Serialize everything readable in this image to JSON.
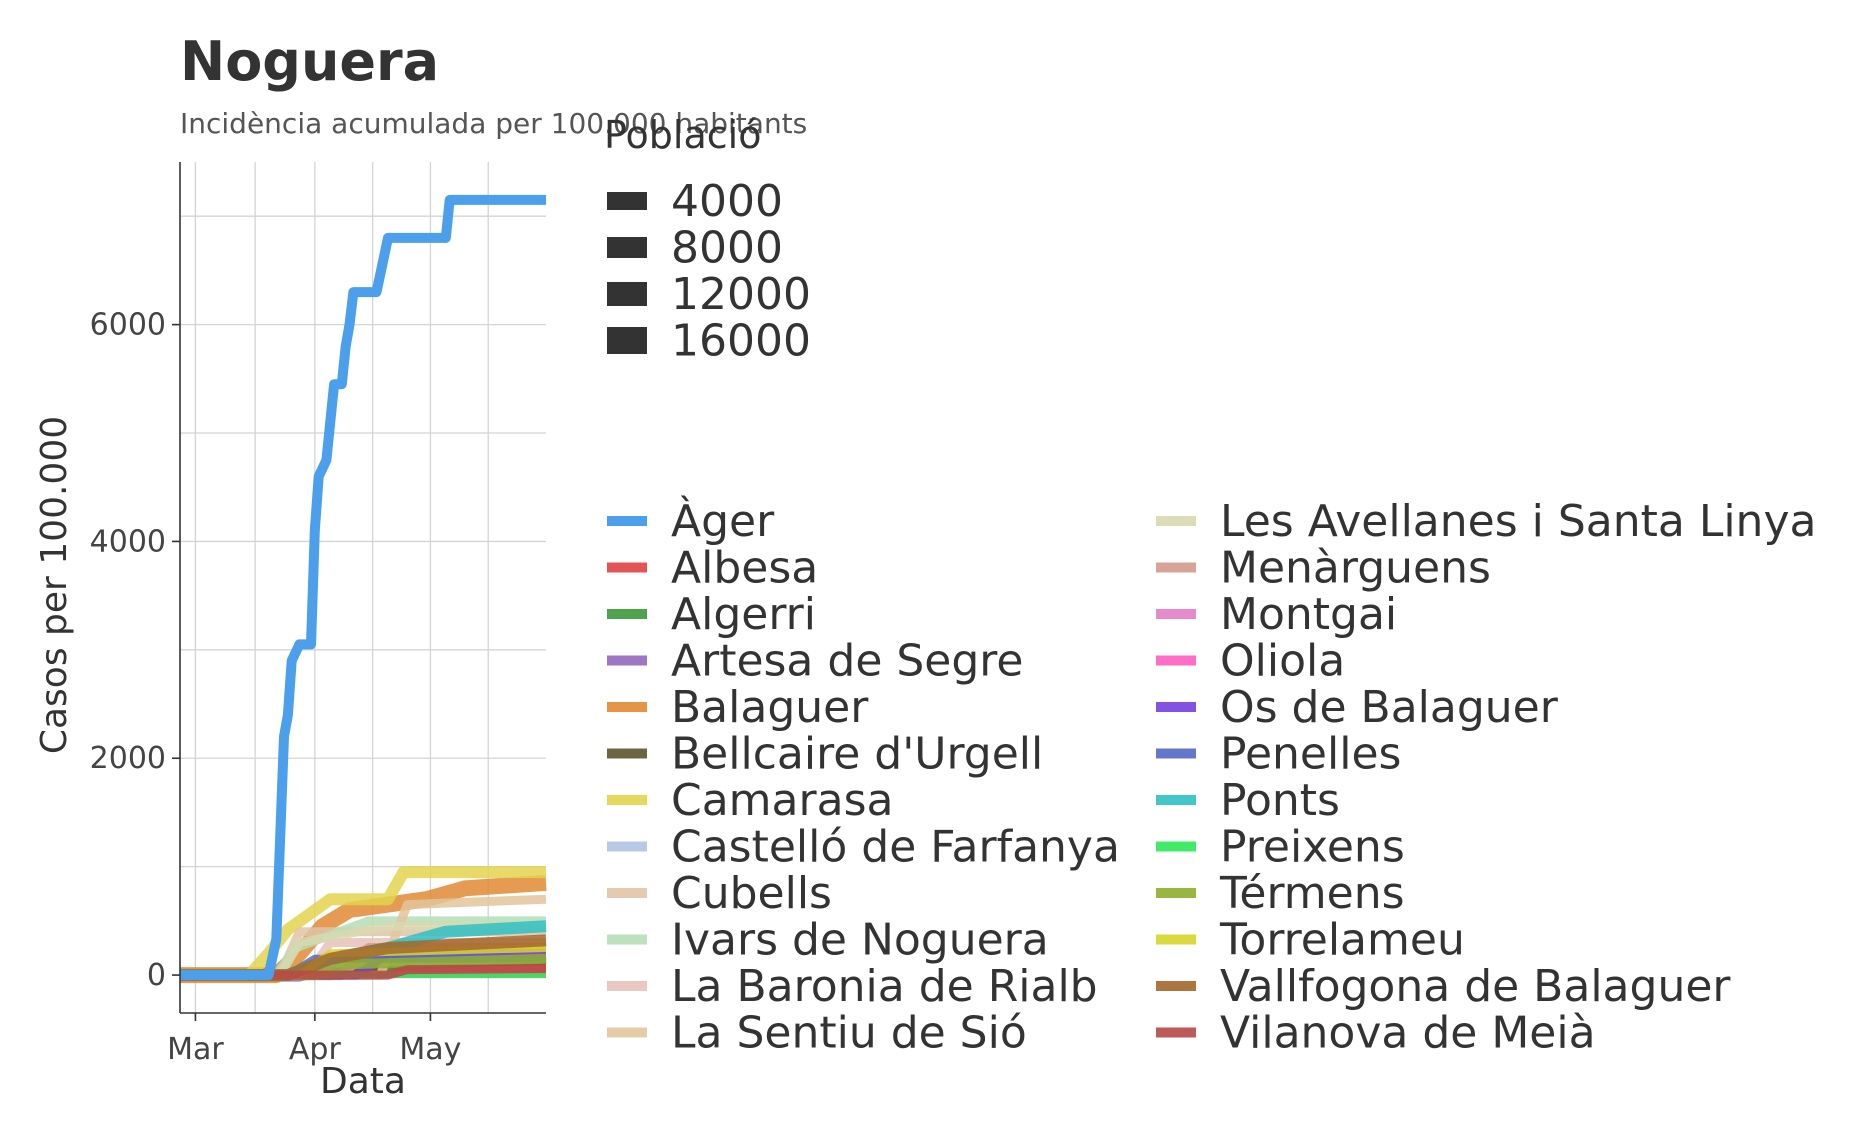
{
  "chart_data": {
    "type": "line",
    "title": "Noguera",
    "subtitle": "Incidència acumulada per 100.000 habitants",
    "xlabel": "Data",
    "ylabel": "Casos per 100.000",
    "x_ticks": [
      {
        "label": "Mar",
        "date": "2020-03-01"
      },
      {
        "label": "Apr",
        "date": "2020-04-01"
      },
      {
        "label": "May",
        "date": "2020-05-01"
      }
    ],
    "x_range": [
      "2020-02-26",
      "2020-05-31"
    ],
    "y_ticks": [
      0,
      2000,
      4000,
      6000
    ],
    "ylim": [
      -350,
      7500
    ],
    "grid": true,
    "size_legend": {
      "title": "Població",
      "values": [
        "4000",
        "8000",
        "12000",
        "16000"
      ]
    },
    "legend_placement": "right",
    "series": [
      {
        "name": "Àger",
        "color": "#4C9FEA",
        "points": [
          [
            "2020-02-26",
            0
          ],
          [
            "2020-03-20",
            0
          ],
          [
            "2020-03-22",
            330
          ],
          [
            "2020-03-24",
            2200
          ],
          [
            "2020-03-25",
            2400
          ],
          [
            "2020-03-26",
            2900
          ],
          [
            "2020-03-28",
            3050
          ],
          [
            "2020-03-31",
            3050
          ],
          [
            "2020-04-01",
            4100
          ],
          [
            "2020-04-02",
            4600
          ],
          [
            "2020-04-04",
            4750
          ],
          [
            "2020-04-06",
            5450
          ],
          [
            "2020-04-08",
            5450
          ],
          [
            "2020-04-09",
            5800
          ],
          [
            "2020-04-10",
            6000
          ],
          [
            "2020-04-11",
            6300
          ],
          [
            "2020-04-17",
            6300
          ],
          [
            "2020-04-20",
            6800
          ],
          [
            "2020-04-29",
            6800
          ],
          [
            "2020-05-05",
            6800
          ],
          [
            "2020-05-06",
            7150
          ],
          [
            "2020-05-31",
            7150
          ]
        ]
      },
      {
        "name": "Albesa",
        "color": "#E04343",
        "points": [
          [
            "2020-02-26",
            0
          ],
          [
            "2020-04-10",
            0
          ],
          [
            "2020-04-20",
            40
          ],
          [
            "2020-05-31",
            60
          ]
        ]
      },
      {
        "name": "Algerri",
        "color": "#3A9A3A",
        "points": [
          [
            "2020-02-26",
            0
          ],
          [
            "2020-04-05",
            0
          ],
          [
            "2020-04-15",
            80
          ],
          [
            "2020-05-31",
            150
          ]
        ]
      },
      {
        "name": "Artesa de Segre",
        "color": "#9467BD",
        "points": [
          [
            "2020-02-26",
            0
          ],
          [
            "2020-03-28",
            0
          ],
          [
            "2020-04-10",
            120
          ],
          [
            "2020-05-31",
            200
          ]
        ]
      },
      {
        "name": "Balaguer",
        "color": "#E18A32",
        "points": [
          [
            "2020-02-26",
            0
          ],
          [
            "2020-03-22",
            0
          ],
          [
            "2020-03-28",
            200
          ],
          [
            "2020-04-03",
            450
          ],
          [
            "2020-04-10",
            600
          ],
          [
            "2020-04-20",
            650
          ],
          [
            "2020-04-30",
            700
          ],
          [
            "2020-05-10",
            800
          ],
          [
            "2020-05-31",
            850
          ]
        ]
      },
      {
        "name": "Bellcaire d'Urgell",
        "color": "#5C5430",
        "points": [
          [
            "2020-02-26",
            0
          ],
          [
            "2020-04-10",
            0
          ],
          [
            "2020-04-20",
            100
          ],
          [
            "2020-05-31",
            130
          ]
        ]
      },
      {
        "name": "Camarasa",
        "color": "#E3D34E",
        "points": [
          [
            "2020-02-26",
            0
          ],
          [
            "2020-03-15",
            0
          ],
          [
            "2020-03-20",
            200
          ],
          [
            "2020-03-25",
            420
          ],
          [
            "2020-04-05",
            700
          ],
          [
            "2020-04-20",
            700
          ],
          [
            "2020-04-24",
            950
          ],
          [
            "2020-05-31",
            950
          ]
        ]
      },
      {
        "name": "Castelló de Farfanya",
        "color": "#AFC3E3",
        "points": [
          [
            "2020-02-26",
            0
          ],
          [
            "2020-03-27",
            0
          ],
          [
            "2020-04-01",
            100
          ],
          [
            "2020-05-31",
            150
          ]
        ]
      },
      {
        "name": "Cubells",
        "color": "#E0C4A8",
        "points": [
          [
            "2020-02-26",
            0
          ],
          [
            "2020-03-23",
            0
          ],
          [
            "2020-03-28",
            400
          ],
          [
            "2020-05-31",
            400
          ]
        ]
      },
      {
        "name": "Ivars de Noguera",
        "color": "#B4DEB6",
        "points": [
          [
            "2020-02-26",
            0
          ],
          [
            "2020-03-22",
            0
          ],
          [
            "2020-03-27",
            250
          ],
          [
            "2020-04-15",
            500
          ],
          [
            "2020-05-31",
            500
          ]
        ]
      },
      {
        "name": "La Baronia de Rialb",
        "color": "#E6C2BA",
        "points": [
          [
            "2020-02-26",
            0
          ],
          [
            "2020-03-30",
            0
          ],
          [
            "2020-04-05",
            300
          ],
          [
            "2020-05-31",
            300
          ]
        ]
      },
      {
        "name": "La Sentiu de Sió",
        "color": "#E2C59C",
        "points": [
          [
            "2020-02-26",
            0
          ],
          [
            "2020-04-18",
            0
          ],
          [
            "2020-04-25",
            650
          ],
          [
            "2020-05-31",
            700
          ]
        ]
      },
      {
        "name": "Les Avellanes i Santa Linya",
        "color": "#D8D8B0",
        "points": [
          [
            "2020-02-26",
            0
          ],
          [
            "2020-03-23",
            0
          ],
          [
            "2020-03-28",
            300
          ],
          [
            "2020-04-20",
            450
          ],
          [
            "2020-05-31",
            450
          ]
        ]
      },
      {
        "name": "Menàrguens",
        "color": "#D49A8A",
        "points": [
          [
            "2020-02-26",
            0
          ],
          [
            "2020-04-08",
            0
          ],
          [
            "2020-04-15",
            250
          ],
          [
            "2020-05-31",
            250
          ]
        ]
      },
      {
        "name": "Montgai",
        "color": "#E47CC8",
        "points": [
          [
            "2020-02-26",
            0
          ],
          [
            "2020-04-03",
            0
          ],
          [
            "2020-04-08",
            200
          ],
          [
            "2020-05-31",
            200
          ]
        ]
      },
      {
        "name": "Oliola",
        "color": "#FF5EC0",
        "points": [
          [
            "2020-02-26",
            0
          ],
          [
            "2020-05-31",
            0
          ]
        ]
      },
      {
        "name": "Os de Balaguer",
        "color": "#7440E0",
        "points": [
          [
            "2020-02-26",
            0
          ],
          [
            "2020-04-12",
            0
          ],
          [
            "2020-04-20",
            200
          ],
          [
            "2020-05-31",
            200
          ]
        ]
      },
      {
        "name": "Penelles",
        "color": "#5468C4",
        "points": [
          [
            "2020-02-26",
            0
          ],
          [
            "2020-03-25",
            0
          ],
          [
            "2020-04-01",
            150
          ],
          [
            "2020-05-31",
            150
          ]
        ]
      },
      {
        "name": "Ponts",
        "color": "#2FC0C4",
        "points": [
          [
            "2020-02-26",
            0
          ],
          [
            "2020-03-25",
            0
          ],
          [
            "2020-04-05",
            150
          ],
          [
            "2020-04-20",
            250
          ],
          [
            "2020-05-05",
            400
          ],
          [
            "2020-05-31",
            450
          ]
        ]
      },
      {
        "name": "Preixens",
        "color": "#2EE858",
        "points": [
          [
            "2020-02-26",
            0
          ],
          [
            "2020-05-31",
            0
          ]
        ]
      },
      {
        "name": "Térmens",
        "color": "#8FAE2E",
        "points": [
          [
            "2020-02-26",
            0
          ],
          [
            "2020-04-01",
            0
          ],
          [
            "2020-04-10",
            100
          ],
          [
            "2020-05-31",
            150
          ]
        ]
      },
      {
        "name": "Torrelameu",
        "color": "#D6D62A",
        "points": [
          [
            "2020-02-26",
            0
          ],
          [
            "2020-03-28",
            0
          ],
          [
            "2020-04-05",
            200
          ],
          [
            "2020-05-31",
            250
          ]
        ]
      },
      {
        "name": "Vallfogona de Balaguer",
        "color": "#A5672A",
        "points": [
          [
            "2020-02-26",
            0
          ],
          [
            "2020-03-25",
            0
          ],
          [
            "2020-04-05",
            150
          ],
          [
            "2020-04-20",
            250
          ],
          [
            "2020-05-31",
            320
          ]
        ]
      },
      {
        "name": "Vilanova de Meià",
        "color": "#B84848",
        "points": [
          [
            "2020-02-26",
            0
          ],
          [
            "2020-04-20",
            0
          ],
          [
            "2020-04-25",
            50
          ],
          [
            "2020-05-31",
            60
          ]
        ]
      }
    ]
  }
}
